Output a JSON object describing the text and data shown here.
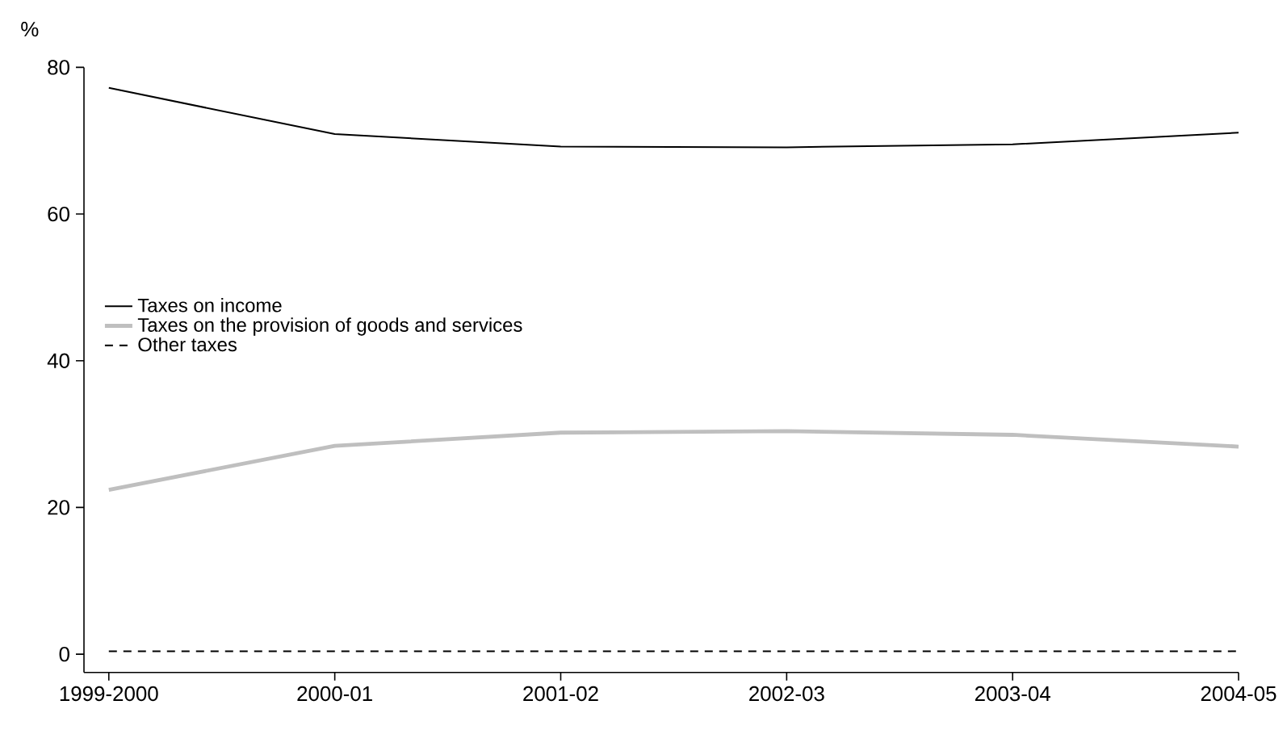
{
  "chart_data": {
    "type": "line",
    "ylabel": "%",
    "categories": [
      "1999-2000",
      "2000-01",
      "2001-02",
      "2002-03",
      "2003-04",
      "2004-05"
    ],
    "series": [
      {
        "name": "Taxes on income",
        "color": "#000000",
        "line_style": "solid",
        "values": [
          77.2,
          70.9,
          69.2,
          69.1,
          69.5,
          71.1
        ]
      },
      {
        "name": "Taxes on the provision of goods and services",
        "color": "#bfbfbf",
        "line_style": "solid",
        "values": [
          22.4,
          28.4,
          30.2,
          30.4,
          29.9,
          28.3
        ]
      },
      {
        "name": "Other taxes",
        "color": "#000000",
        "line_style": "dashed",
        "values": [
          0.4,
          0.4,
          0.4,
          0.4,
          0.4,
          0.4
        ]
      }
    ],
    "ylim": [
      -2.5,
      80
    ],
    "yticks": [
      0,
      20,
      40,
      60,
      80
    ],
    "legend": "left"
  }
}
